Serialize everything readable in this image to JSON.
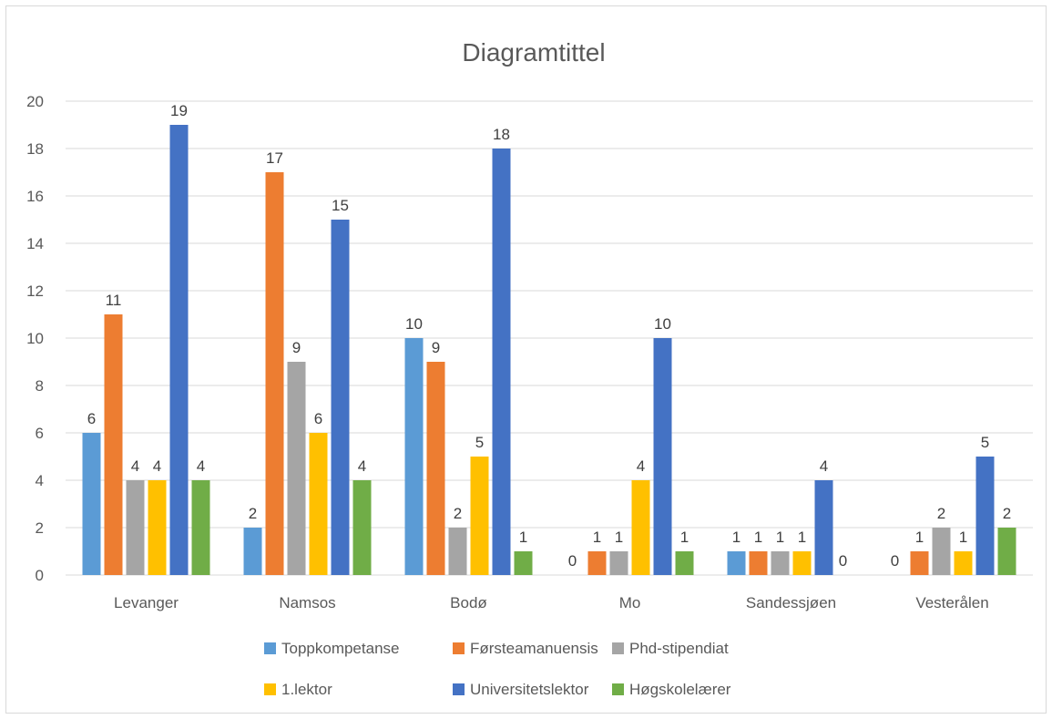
{
  "chart_data": {
    "type": "bar",
    "title": "Diagramtittel",
    "xlabel": "",
    "ylabel": "",
    "ylim": [
      0,
      20
    ],
    "ytick_step": 2,
    "grid": true,
    "legend_position": "bottom",
    "categories": [
      "Levanger",
      "Namsos",
      "Bodø",
      "Mo",
      "Sandessjøen",
      "Vesterålen"
    ],
    "series": [
      {
        "name": "Toppkompetanse",
        "color": "#5b9bd5",
        "values": [
          6,
          2,
          10,
          0,
          1,
          0
        ]
      },
      {
        "name": "Førsteamanuensis",
        "color": "#ed7d31",
        "values": [
          11,
          17,
          9,
          1,
          1,
          1
        ]
      },
      {
        "name": "Phd-stipendiat",
        "color": "#a5a5a5",
        "values": [
          4,
          9,
          2,
          1,
          1,
          2
        ]
      },
      {
        "name": "1.lektor",
        "color": "#ffc000",
        "values": [
          4,
          6,
          5,
          4,
          1,
          1
        ]
      },
      {
        "name": "Universitetslektor",
        "color": "#4472c4",
        "values": [
          19,
          15,
          18,
          10,
          4,
          5
        ]
      },
      {
        "name": "Høgskolelærer",
        "color": "#70ad47",
        "values": [
          4,
          4,
          1,
          1,
          0,
          2
        ]
      }
    ]
  }
}
